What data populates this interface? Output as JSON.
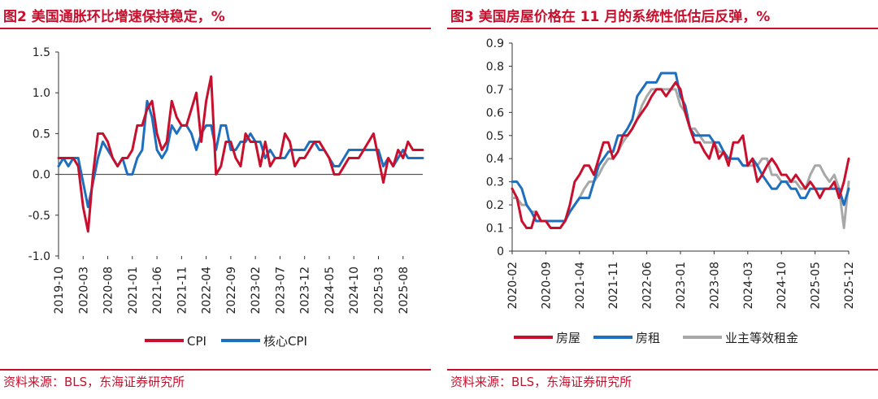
{
  "left": {
    "title": "图2  美国通胀环比增速保持稳定，%",
    "source": "资料来源：BLS，东海证券研究所"
  },
  "right": {
    "title": "图3  美国房屋价格在 11 月的系统性低估后反弹，%",
    "source": "资料来源：BLS，东海证券研究所"
  },
  "colors": {
    "red": "#c8102e",
    "blue": "#1f6fbf",
    "gray": "#a8a8a8"
  },
  "chart_data": [
    {
      "type": "line",
      "title": "美国通胀环比增速保持稳定，%",
      "ylim": [
        -1.0,
        1.5
      ],
      "yticks": [
        1.5,
        1.0,
        0.5,
        0.0,
        -0.5,
        -1.0
      ],
      "ytick_labels": [
        "1.5",
        "1.0",
        "0.5",
        "0.0",
        "-0.5",
        "-1.0"
      ],
      "xtick_labels": [
        "2019-10",
        "2020-03",
        "2020-08",
        "2021-01",
        "2021-06",
        "2021-11",
        "2022-04",
        "2022-09",
        "2023-02",
        "2023-07",
        "2023-12",
        "2024-05",
        "2024-10",
        "2025-03",
        "2025-08"
      ],
      "xtick_index": [
        0,
        5,
        10,
        15,
        20,
        25,
        30,
        35,
        40,
        45,
        50,
        55,
        60,
        65,
        70
      ],
      "n_points": 75,
      "series": [
        {
          "name": "CPI",
          "color": "red",
          "values": [
            0.2,
            0.2,
            0.2,
            0.2,
            0.1,
            -0.4,
            -0.7,
            0.0,
            0.5,
            0.5,
            0.4,
            0.2,
            0.1,
            0.2,
            0.2,
            0.3,
            0.6,
            0.6,
            0.8,
            0.9,
            0.5,
            0.3,
            0.4,
            0.9,
            0.7,
            0.6,
            0.6,
            0.8,
            1.0,
            0.4,
            0.9,
            1.2,
            0.0,
            0.1,
            0.4,
            0.4,
            0.2,
            0.1,
            0.5,
            0.4,
            0.4,
            0.1,
            0.4,
            0.1,
            0.2,
            0.2,
            0.5,
            0.4,
            0.1,
            0.2,
            0.2,
            0.3,
            0.4,
            0.4,
            0.3,
            0.2,
            0.0,
            0.0,
            0.1,
            0.2,
            0.2,
            0.2,
            0.3,
            0.4,
            0.5,
            0.2,
            -0.1,
            0.2,
            0.1,
            0.3,
            0.2,
            0.4,
            0.3,
            0.3,
            0.3
          ]
        },
        {
          "name": "核心CPI",
          "color": "blue",
          "values": [
            0.1,
            0.2,
            0.1,
            0.2,
            0.2,
            -0.1,
            -0.4,
            -0.1,
            0.2,
            0.4,
            0.3,
            0.2,
            0.1,
            0.2,
            0.0,
            0.0,
            0.2,
            0.3,
            0.9,
            0.7,
            0.3,
            0.2,
            0.3,
            0.6,
            0.5,
            0.6,
            0.6,
            0.5,
            0.3,
            0.5,
            0.6,
            0.6,
            0.3,
            0.6,
            0.6,
            0.3,
            0.3,
            0.4,
            0.4,
            0.5,
            0.4,
            0.4,
            0.2,
            0.3,
            0.2,
            0.2,
            0.2,
            0.3,
            0.3,
            0.3,
            0.3,
            0.4,
            0.4,
            0.3,
            0.3,
            0.2,
            0.1,
            0.1,
            0.2,
            0.3,
            0.3,
            0.3,
            0.3,
            0.3,
            0.3,
            0.3,
            0.1,
            0.2,
            0.1,
            0.2,
            0.3,
            0.2,
            0.2,
            0.2,
            0.2
          ]
        }
      ],
      "legend": [
        "CPI",
        "核心CPI"
      ]
    },
    {
      "type": "line",
      "title": "美国房屋价格在 11 月的系统性低估后反弹，%",
      "ylim": [
        0.0,
        0.9
      ],
      "yticks": [
        0.9,
        0.8,
        0.7,
        0.6,
        0.5,
        0.4,
        0.3,
        0.2,
        0.1,
        0.0
      ],
      "ytick_labels": [
        "0.9",
        "0.8",
        "0.7",
        "0.6",
        "0.5",
        "0.4",
        "0.3",
        "0.2",
        "0.1",
        "0"
      ],
      "xtick_labels": [
        "2020-02",
        "2020-09",
        "2021-04",
        "2021-11",
        "2022-06",
        "2023-01",
        "2023-08",
        "2024-03",
        "2024-10",
        "2025-05",
        "2025-12"
      ],
      "xtick_index": [
        0,
        7,
        14,
        21,
        28,
        35,
        42,
        49,
        56,
        63,
        70
      ],
      "n_points": 71,
      "series": [
        {
          "name": "房屋",
          "color": "red",
          "values": [
            0.27,
            0.23,
            0.13,
            0.1,
            0.1,
            0.17,
            0.13,
            0.13,
            0.1,
            0.1,
            0.1,
            0.13,
            0.2,
            0.3,
            0.33,
            0.37,
            0.37,
            0.33,
            0.4,
            0.47,
            0.47,
            0.4,
            0.43,
            0.5,
            0.5,
            0.53,
            0.57,
            0.6,
            0.63,
            0.67,
            0.7,
            0.7,
            0.67,
            0.7,
            0.73,
            0.7,
            0.6,
            0.53,
            0.47,
            0.47,
            0.43,
            0.4,
            0.47,
            0.4,
            0.43,
            0.37,
            0.47,
            0.47,
            0.5,
            0.37,
            0.4,
            0.3,
            0.33,
            0.37,
            0.4,
            0.37,
            0.33,
            0.33,
            0.3,
            0.33,
            0.3,
            0.27,
            0.3,
            0.27,
            0.23,
            0.27,
            0.27,
            0.3,
            0.23,
            0.3,
            0.4
          ]
        },
        {
          "name": "房租",
          "color": "blue",
          "values": [
            0.3,
            0.3,
            0.27,
            0.2,
            0.17,
            0.13,
            0.13,
            0.13,
            0.13,
            0.13,
            0.13,
            0.13,
            0.17,
            0.2,
            0.23,
            0.23,
            0.23,
            0.3,
            0.37,
            0.4,
            0.43,
            0.43,
            0.5,
            0.5,
            0.53,
            0.57,
            0.67,
            0.7,
            0.73,
            0.73,
            0.73,
            0.77,
            0.77,
            0.77,
            0.77,
            0.67,
            0.63,
            0.53,
            0.5,
            0.5,
            0.5,
            0.5,
            0.47,
            0.47,
            0.43,
            0.4,
            0.4,
            0.4,
            0.37,
            0.37,
            0.4,
            0.37,
            0.33,
            0.3,
            0.27,
            0.27,
            0.3,
            0.3,
            0.27,
            0.27,
            0.23,
            0.23,
            0.27,
            0.27,
            0.27,
            0.27,
            0.27,
            0.27,
            0.27,
            0.2,
            0.27
          ]
        },
        {
          "name": "业主等效租金",
          "color": "gray",
          "values": [
            0.23,
            0.23,
            0.2,
            0.2,
            0.17,
            0.17,
            0.13,
            0.13,
            0.13,
            0.13,
            0.13,
            0.13,
            0.17,
            0.2,
            0.23,
            0.27,
            0.3,
            0.3,
            0.33,
            0.37,
            0.4,
            0.4,
            0.43,
            0.47,
            0.5,
            0.53,
            0.57,
            0.63,
            0.67,
            0.7,
            0.7,
            0.7,
            0.7,
            0.7,
            0.7,
            0.63,
            0.6,
            0.53,
            0.53,
            0.5,
            0.47,
            0.47,
            0.47,
            0.43,
            0.43,
            0.4,
            0.4,
            0.4,
            0.37,
            0.37,
            0.37,
            0.37,
            0.4,
            0.4,
            0.33,
            0.33,
            0.3,
            0.3,
            0.3,
            0.3,
            0.27,
            0.27,
            0.33,
            0.37,
            0.37,
            0.33,
            0.3,
            0.33,
            0.27,
            0.1,
            0.3
          ]
        }
      ],
      "legend": [
        "房屋",
        "房租",
        "业主等效租金"
      ]
    }
  ]
}
